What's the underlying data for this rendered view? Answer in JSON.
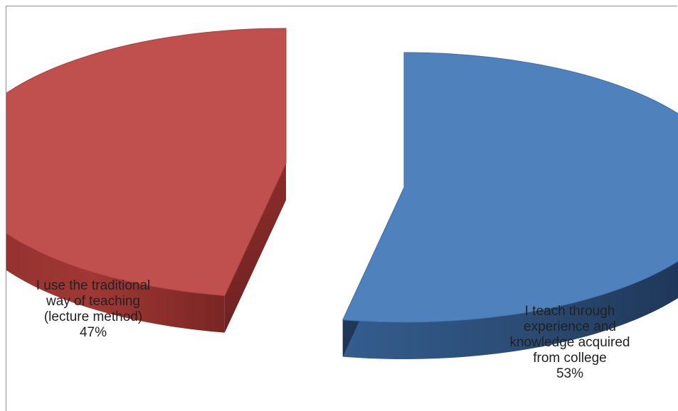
{
  "chart_data": {
    "type": "pie",
    "title": "",
    "style": "3d-exploded",
    "slices": [
      {
        "label": "I teach through experience and knowledge acquired from college",
        "value": 53,
        "display": "53%",
        "color": "#4f81bd"
      },
      {
        "label": "I use the traditional way of teaching (lecture method)",
        "value": 47,
        "display": "47%",
        "color": "#c0504d"
      }
    ],
    "legend": "none"
  }
}
